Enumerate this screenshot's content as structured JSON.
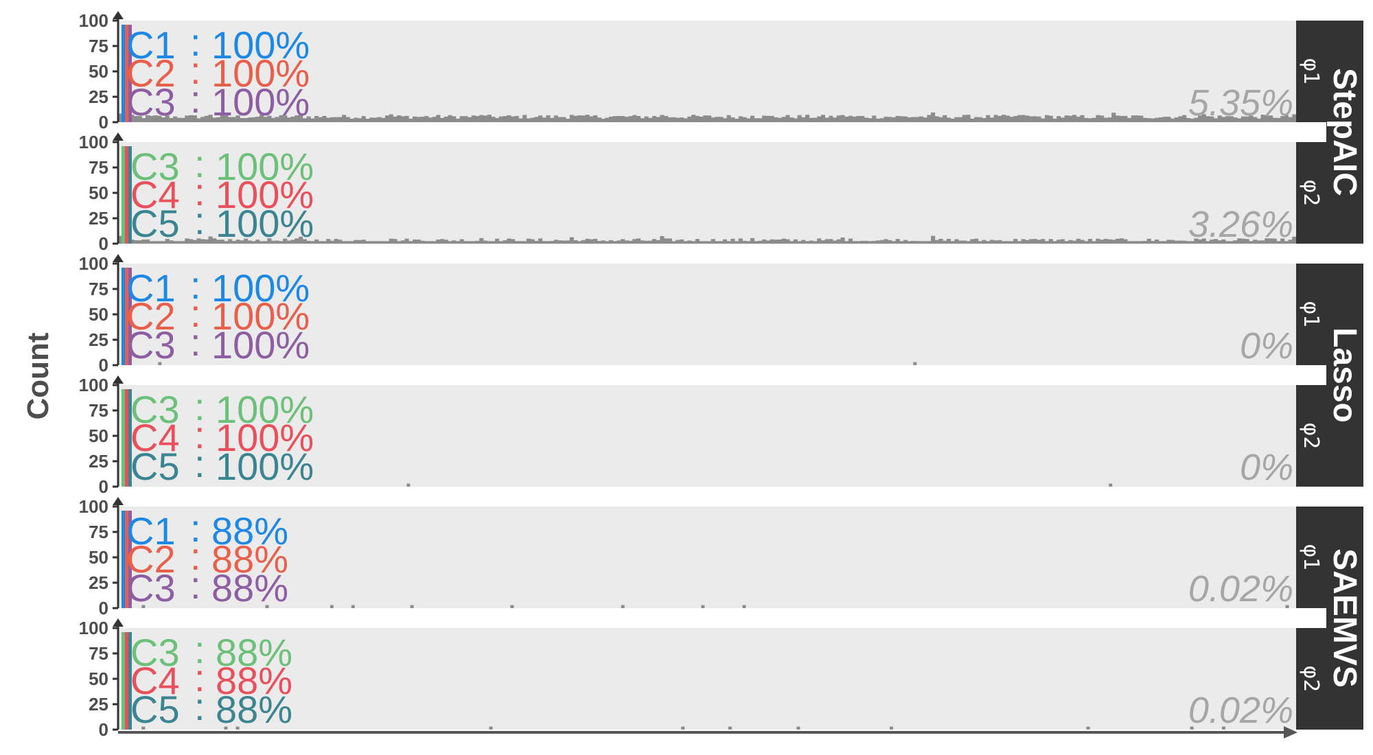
{
  "chart_data": {
    "type": "bar",
    "ylabel": "Count",
    "ylim": [
      0,
      100
    ],
    "yticks": [
      "100",
      "75",
      "50",
      "25",
      "0"
    ],
    "colors": {
      "C1": "#1e88e5",
      "C2": "#e8604c",
      "C3_phi1": "#8e5ea2",
      "C3_phi2": "#6cc07a",
      "C4": "#e8505b",
      "C5": "#3b8592",
      "bar": "#8c8c8c",
      "panel_bg": "#ebebeb",
      "strip_bg": "#333333"
    },
    "methods": [
      {
        "name": "StepAIC",
        "panels": [
          0,
          1
        ]
      },
      {
        "name": "Lasso",
        "panels": [
          2,
          3
        ]
      },
      {
        "name": "SAEMVS",
        "panels": [
          4,
          5
        ]
      }
    ],
    "panels": [
      {
        "param": "φ1",
        "percentage": "5.35%",
        "pattern": "noise",
        "level": 5.35,
        "labels": [
          {
            "name": "C1",
            "sep": ":",
            "value": "100%",
            "color": "#1e88e5"
          },
          {
            "name": "C2",
            "sep": ":",
            "value": "100%",
            "color": "#e8604c"
          },
          {
            "name": "C3",
            "sep": ":",
            "value": "100%",
            "color": "#8e5ea2"
          }
        ]
      },
      {
        "param": "φ2",
        "percentage": "3.26%",
        "pattern": "noise",
        "level": 3.26,
        "labels": [
          {
            "name": "C3",
            "sep": ":",
            "value": "100%",
            "color": "#6cc07a"
          },
          {
            "name": "C4",
            "sep": ":",
            "value": "100%",
            "color": "#e8505b"
          },
          {
            "name": "C5",
            "sep": ":",
            "value": "100%",
            "color": "#3b8592"
          }
        ]
      },
      {
        "param": "φ1",
        "percentage": "0%",
        "pattern": "sparse",
        "spikes": [
          {
            "pos": 0.034,
            "v": 1
          },
          {
            "pos": 0.675,
            "v": 1
          }
        ],
        "labels": [
          {
            "name": "C1",
            "sep": ":",
            "value": "100%",
            "color": "#1e88e5"
          },
          {
            "name": "C2",
            "sep": ":",
            "value": "100%",
            "color": "#e8604c"
          },
          {
            "name": "C3",
            "sep": ":",
            "value": "100%",
            "color": "#8e5ea2"
          }
        ]
      },
      {
        "param": "φ2",
        "percentage": "0%",
        "pattern": "sparse",
        "spikes": [
          {
            "pos": 0.245,
            "v": 1
          },
          {
            "pos": 0.841,
            "v": 1
          }
        ],
        "labels": [
          {
            "name": "C3",
            "sep": ":",
            "value": "100%",
            "color": "#6cc07a"
          },
          {
            "name": "C4",
            "sep": ":",
            "value": "100%",
            "color": "#e8505b"
          },
          {
            "name": "C5",
            "sep": ":",
            "value": "100%",
            "color": "#3b8592"
          }
        ]
      },
      {
        "param": "φ1",
        "percentage": "0.02%",
        "pattern": "sparse",
        "spikes": [
          {
            "pos": 0.005,
            "v": 1
          },
          {
            "pos": 0.02,
            "v": 1
          },
          {
            "pos": 0.125,
            "v": 1
          },
          {
            "pos": 0.18,
            "v": 1
          },
          {
            "pos": 0.198,
            "v": 1
          },
          {
            "pos": 0.248,
            "v": 1
          },
          {
            "pos": 0.333,
            "v": 1
          },
          {
            "pos": 0.427,
            "v": 1
          },
          {
            "pos": 0.495,
            "v": 1
          },
          {
            "pos": 0.53,
            "v": 1
          },
          {
            "pos": 0.991,
            "v": 1
          }
        ],
        "labels": [
          {
            "name": "C1",
            "sep": ":",
            "value": "88%",
            "color": "#1e88e5"
          },
          {
            "name": "C2",
            "sep": ":",
            "value": "88%",
            "color": "#e8604c"
          },
          {
            "name": "C3",
            "sep": ":",
            "value": "88%",
            "color": "#8e5ea2"
          }
        ]
      },
      {
        "param": "φ2",
        "percentage": "0.02%",
        "pattern": "sparse",
        "spikes": [
          {
            "pos": 0.005,
            "v": 1
          },
          {
            "pos": 0.02,
            "v": 1
          },
          {
            "pos": 0.09,
            "v": 1
          },
          {
            "pos": 0.1,
            "v": 1
          },
          {
            "pos": 0.315,
            "v": 1
          },
          {
            "pos": 0.478,
            "v": 1
          },
          {
            "pos": 0.518,
            "v": 1
          },
          {
            "pos": 0.576,
            "v": 1
          },
          {
            "pos": 0.655,
            "v": 1
          },
          {
            "pos": 0.822,
            "v": 1
          },
          {
            "pos": 0.91,
            "v": 1
          },
          {
            "pos": 0.937,
            "v": 1
          }
        ],
        "labels": [
          {
            "name": "C3",
            "sep": ":",
            "value": "88%",
            "color": "#6cc07a"
          },
          {
            "name": "C4",
            "sep": ":",
            "value": "88%",
            "color": "#e8505b"
          },
          {
            "name": "C5",
            "sep": ":",
            "value": "88%",
            "color": "#3b8592"
          }
        ]
      }
    ]
  }
}
